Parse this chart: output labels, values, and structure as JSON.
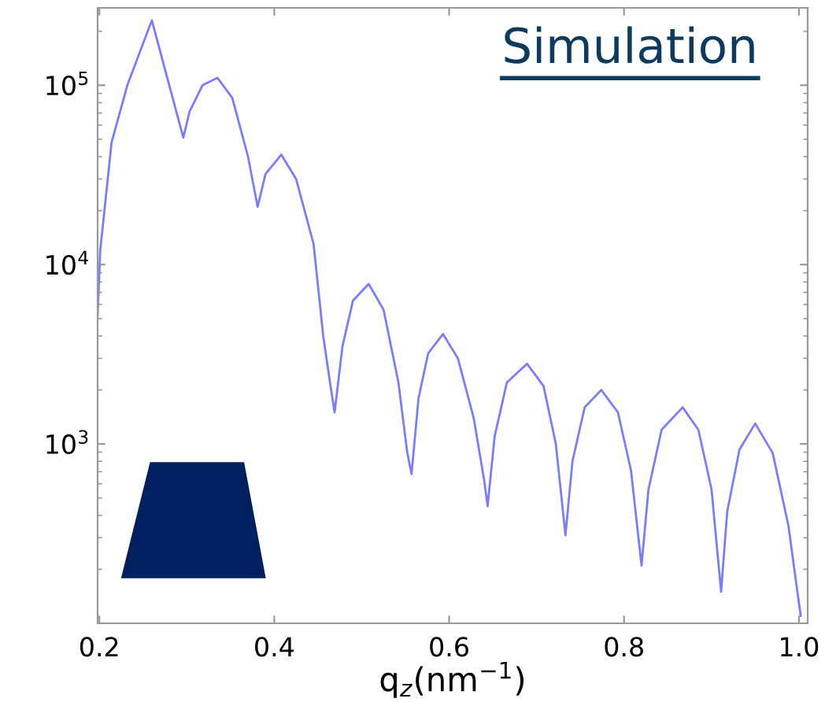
{
  "chart_data": {
    "type": "line",
    "xlabel": "q$_{z}$(nm$^{−1}$)",
    "annotations": [
      "Simulation"
    ],
    "log": "y",
    "grid": false,
    "legend": false,
    "marker": "none",
    "line_style": "solid",
    "xlim": [
      0.198,
      1.01
    ],
    "xticks": [
      0.2,
      0.4,
      0.6,
      0.8,
      {
        "value": 1.0,
        "label": "1.0"
      }
    ],
    "ylim": [
      100,
      270000
    ],
    "yticks": [
      {
        "value": 1000,
        "label": "10$^{3}$"
      },
      {
        "value": 10000,
        "label": "10$^{4}$"
      },
      {
        "value": 100000,
        "label": "10$^{5}$"
      }
    ],
    "series": [
      {
        "color": "#7b7bff",
        "x": [
          0.198,
          0.201,
          0.214,
          0.232,
          0.26,
          0.296,
          0.303,
          0.318,
          0.335,
          0.352,
          0.37,
          0.381,
          0.39,
          0.408,
          0.425,
          0.445,
          0.456,
          0.465,
          0.469,
          0.478,
          0.49,
          0.508,
          0.525,
          0.542,
          0.552,
          0.557,
          0.565,
          0.576,
          0.593,
          0.61,
          0.628,
          0.64,
          0.644,
          0.652,
          0.666,
          0.689,
          0.708,
          0.722,
          0.733,
          0.741,
          0.755,
          0.774,
          0.793,
          0.808,
          0.82,
          0.828,
          0.843,
          0.867,
          0.885,
          0.9,
          0.911,
          0.918,
          0.932,
          0.95,
          0.97,
          0.988,
          1.002
        ],
        "values": [
          5200,
          12000,
          48000,
          100000,
          230000,
          51000,
          71000,
          100000,
          110000,
          85000,
          40000,
          21000,
          32000,
          41000,
          30000,
          13000,
          4000,
          2000,
          1500,
          3500,
          6300,
          7800,
          5600,
          2200,
          900,
          680,
          1800,
          3200,
          4100,
          3000,
          1400,
          630,
          450,
          1100,
          2200,
          2800,
          2100,
          1000,
          310,
          800,
          1600,
          2000,
          1500,
          710,
          210,
          560,
          1200,
          1600,
          1200,
          560,
          150,
          420,
          930,
          1300,
          890,
          350,
          110
        ]
      }
    ]
  }
}
